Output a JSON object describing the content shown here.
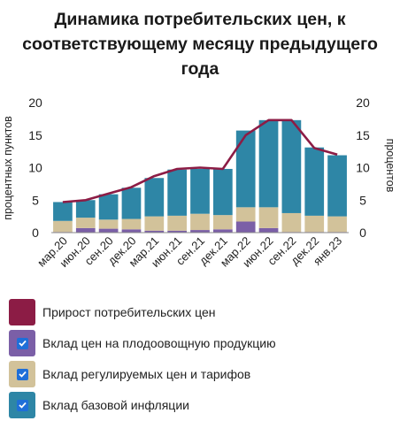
{
  "title_lines": [
    "Динамика потребительских цен, к",
    "соответствующему месяцу предыдущего",
    "года"
  ],
  "chart_data": {
    "type": "bar",
    "stacked": true,
    "categories": [
      "мар.20",
      "июн.20",
      "сен.20",
      "дек.20",
      "мар.21",
      "июн.21",
      "сен.21",
      "дек.21",
      "мар.22",
      "июн.22",
      "сен.22",
      "дек.22",
      "янв.23"
    ],
    "series": [
      {
        "name": "Вклад цен на плодоовощную продукцию",
        "color": "#7b5fa7",
        "values": [
          0.1,
          0.7,
          0.6,
          0.5,
          0.3,
          0.3,
          0.4,
          0.5,
          1.7,
          0.7,
          0.1,
          0.1,
          0.1
        ]
      },
      {
        "name": "Вклад регулируемых цен и тарифов",
        "color": "#d2c29a",
        "values": [
          1.7,
          1.6,
          1.4,
          1.6,
          2.2,
          2.3,
          2.5,
          2.2,
          2.2,
          3.2,
          2.9,
          2.5,
          2.4
        ]
      },
      {
        "name": "Вклад базовой инфляции",
        "color": "#2e86a6",
        "values": [
          2.9,
          2.7,
          3.9,
          4.8,
          5.9,
          7.1,
          6.9,
          7.1,
          11.8,
          13.4,
          14.3,
          10.5,
          9.4
        ]
      }
    ],
    "line": {
      "name": "Прирост потребительских цен",
      "color": "#8c1c45",
      "values": [
        4.7,
        5.0,
        6.0,
        7.0,
        8.7,
        9.8,
        10.0,
        9.8,
        15.0,
        17.3,
        17.3,
        13.0,
        12.0
      ]
    },
    "ylim": [
      0,
      20
    ],
    "yticks": [
      "0",
      "5",
      "10",
      "15",
      "20"
    ],
    "ylabel_left": "процентных пунктов",
    "ylabel_right": "процентов",
    "grid": false
  },
  "legend": [
    {
      "label": "Прирост потребительских цен",
      "color": "#8c1c45",
      "checkbox": false
    },
    {
      "label": "Вклад цен на плодоовощную продукцию",
      "color": "#7b5fa7",
      "checkbox": true
    },
    {
      "label": "Вклад регулируемых цен и тарифов",
      "color": "#d2c29a",
      "checkbox": true
    },
    {
      "label": "Вклад базовой инфляции",
      "color": "#2e86a6",
      "checkbox": true
    }
  ]
}
